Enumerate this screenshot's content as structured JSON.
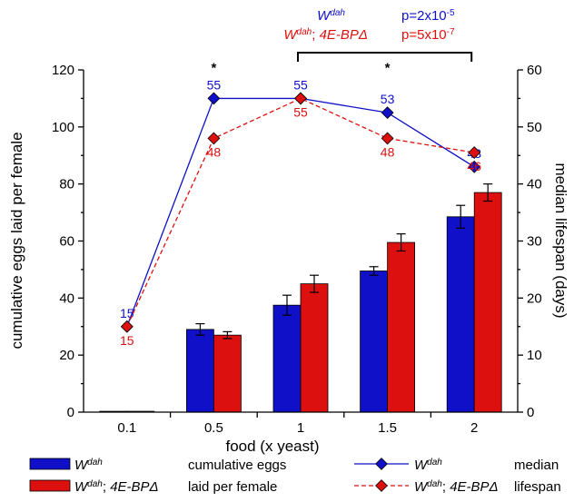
{
  "chart_data": {
    "type": "bar",
    "xlabel": "food (x yeast)",
    "ylabel": "cumulative eggs laid per female",
    "ylabel_right": "median lifespan (days)",
    "ylim": [
      0,
      120
    ],
    "yticks": [
      "0",
      "20",
      "40",
      "60",
      "80",
      "100",
      "120"
    ],
    "ylim_right": [
      0,
      60
    ],
    "yticks_right": [
      "0",
      "10",
      "20",
      "30",
      "40",
      "50",
      "60"
    ],
    "categories": [
      "0.1",
      "0.5",
      "1",
      "1.5",
      "2"
    ],
    "bar_series": [
      {
        "name_parts": [
          "W",
          "dah",
          ""
        ],
        "values": [
          0.3,
          29,
          37.5,
          49.5,
          68.5
        ],
        "errors": [
          0.2,
          2,
          3.5,
          1.5,
          4
        ],
        "color": "#1010c8"
      },
      {
        "name_parts": [
          "W",
          "dah",
          "; 4E-BPΔ"
        ],
        "values": [
          0.3,
          27,
          45,
          59.5,
          77
        ],
        "errors": [
          0.2,
          1.2,
          3,
          3,
          3
        ],
        "color": "#dd1010"
      }
    ],
    "line_series": [
      {
        "name_parts": [
          "W",
          "dah",
          ""
        ],
        "values": [
          15,
          55,
          55,
          52.5,
          43
        ],
        "labels": [
          "15",
          "55",
          "55",
          "53",
          "43"
        ],
        "color": "#1010c8",
        "dash": "solid"
      },
      {
        "name_parts": [
          "W",
          "dah",
          "; 4E-BPΔ"
        ],
        "values": [
          15,
          48,
          55,
          48,
          45.5
        ],
        "labels": [
          "15",
          "48",
          "55",
          "48",
          "46"
        ],
        "color": "#dd1010",
        "dash": "dashed"
      }
    ],
    "significance_stars": [
      "*",
      "*"
    ],
    "bracket_labels": [
      {
        "name_parts": [
          "W",
          "dah",
          ""
        ],
        "p": "p=2x10",
        "exp": "-5",
        "color": "#1010c8"
      },
      {
        "name_parts": [
          "W",
          "dah",
          "; 4E-BPΔ"
        ],
        "p": "p=5x10",
        "exp": "-7",
        "color": "#dd1010"
      }
    ],
    "legend": {
      "bar_group_label": [
        "cumulative eggs",
        "laid per female"
      ],
      "line_group_label": [
        "median",
        "lifespan"
      ]
    },
    "legend_position": "bottom",
    "grid": false
  }
}
